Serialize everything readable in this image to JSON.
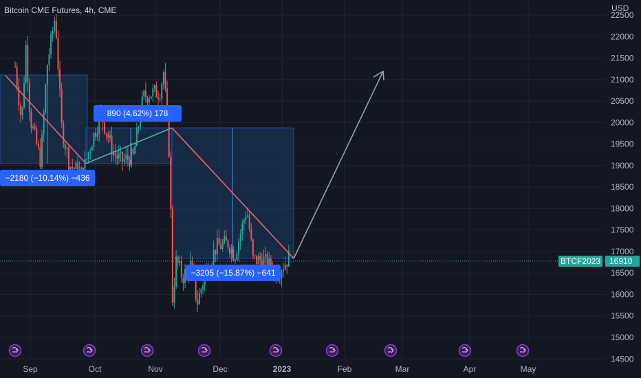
{
  "header": {
    "title": "Bitcoin CME Futures, 4h, CME",
    "currency": "USD"
  },
  "price_tag": {
    "symbol": "BTCF2023",
    "value": "16910"
  },
  "colors": {
    "background": "#131722",
    "grid": "#1f2430",
    "up": "#26a69a",
    "down": "#ef5350",
    "box_fill": "#1c3a5e",
    "box_stroke": "#2962ff",
    "trend_red": "#f0616d",
    "trend_teal": "#4fb0a8",
    "projection": "#8fa3a8",
    "label_bg": "#2962ff",
    "tag_bg": "#26a69a"
  },
  "chart_data": {
    "type": "candlestick",
    "title": "Bitcoin CME Futures, 4h, CME",
    "y_unit": "USD",
    "y_ticks": [
      14500,
      15000,
      15500,
      16000,
      16500,
      17000,
      17500,
      18000,
      18500,
      19000,
      19500,
      20000,
      20500,
      21000,
      21500,
      22000,
      22500
    ],
    "y_tick_labels": [
      "14500",
      "15000",
      "15500",
      "16000",
      "16500",
      "17000",
      "17500",
      "18000",
      "18500",
      "19000",
      "19500",
      "20000",
      "20500",
      "21000",
      "21500",
      "22000",
      "22500"
    ],
    "x_tick_labels": [
      "Sep",
      "Oct",
      "Nov",
      "Dec",
      "2023",
      "Feb",
      "Mar",
      "Apr",
      "May"
    ],
    "ylim": [
      14400,
      22900
    ],
    "last_price": 16910,
    "grid": true,
    "price_path": [
      {
        "x": "Aug 25",
        "y": 21300
      },
      {
        "x": "Aug 28",
        "y": 20000
      },
      {
        "x": "Aug 30",
        "y": 21800
      },
      {
        "x": "Sep 1",
        "y": 20100
      },
      {
        "x": "Sep 6",
        "y": 19100
      },
      {
        "x": "Sep 9",
        "y": 21300
      },
      {
        "x": "Sep 13",
        "y": 22500
      },
      {
        "x": "Sep 16",
        "y": 19900
      },
      {
        "x": "Sep 20",
        "y": 19000
      },
      {
        "x": "Sep 26",
        "y": 18800
      },
      {
        "x": "Sep 30",
        "y": 19500
      },
      {
        "x": "Oct 4",
        "y": 20200
      },
      {
        "x": "Oct 10",
        "y": 19300
      },
      {
        "x": "Oct 14",
        "y": 19100
      },
      {
        "x": "Oct 20",
        "y": 19200
      },
      {
        "x": "Oct 25",
        "y": 20600
      },
      {
        "x": "Oct 30",
        "y": 20700
      },
      {
        "x": "Nov 3",
        "y": 20700
      },
      {
        "x": "Nov 5",
        "y": 21200
      },
      {
        "x": "Nov 8",
        "y": 19000
      },
      {
        "x": "Nov 9",
        "y": 15800
      },
      {
        "x": "Nov 11",
        "y": 16800
      },
      {
        "x": "Nov 14",
        "y": 16400
      },
      {
        "x": "Nov 18",
        "y": 16700
      },
      {
        "x": "Nov 21",
        "y": 15800
      },
      {
        "x": "Nov 25",
        "y": 16500
      },
      {
        "x": "Nov 30",
        "y": 17100
      },
      {
        "x": "Dec 5",
        "y": 17200
      },
      {
        "x": "Dec 8",
        "y": 16900
      },
      {
        "x": "Dec 14",
        "y": 18000
      },
      {
        "x": "Dec 17",
        "y": 16800
      },
      {
        "x": "Dec 22",
        "y": 16800
      },
      {
        "x": "Dec 28",
        "y": 16500
      },
      {
        "x": "Dec 30",
        "y": 16600
      },
      {
        "x": "Jan 2",
        "y": 16700
      },
      {
        "x": "Jan 5",
        "y": 16910
      }
    ],
    "annotations": [
      {
        "text": "−2180 (−10.14%) −436"
      },
      {
        "text": "890 (4.62%) 178"
      },
      {
        "text": "−3205 (−15.87%) −641"
      }
    ]
  }
}
